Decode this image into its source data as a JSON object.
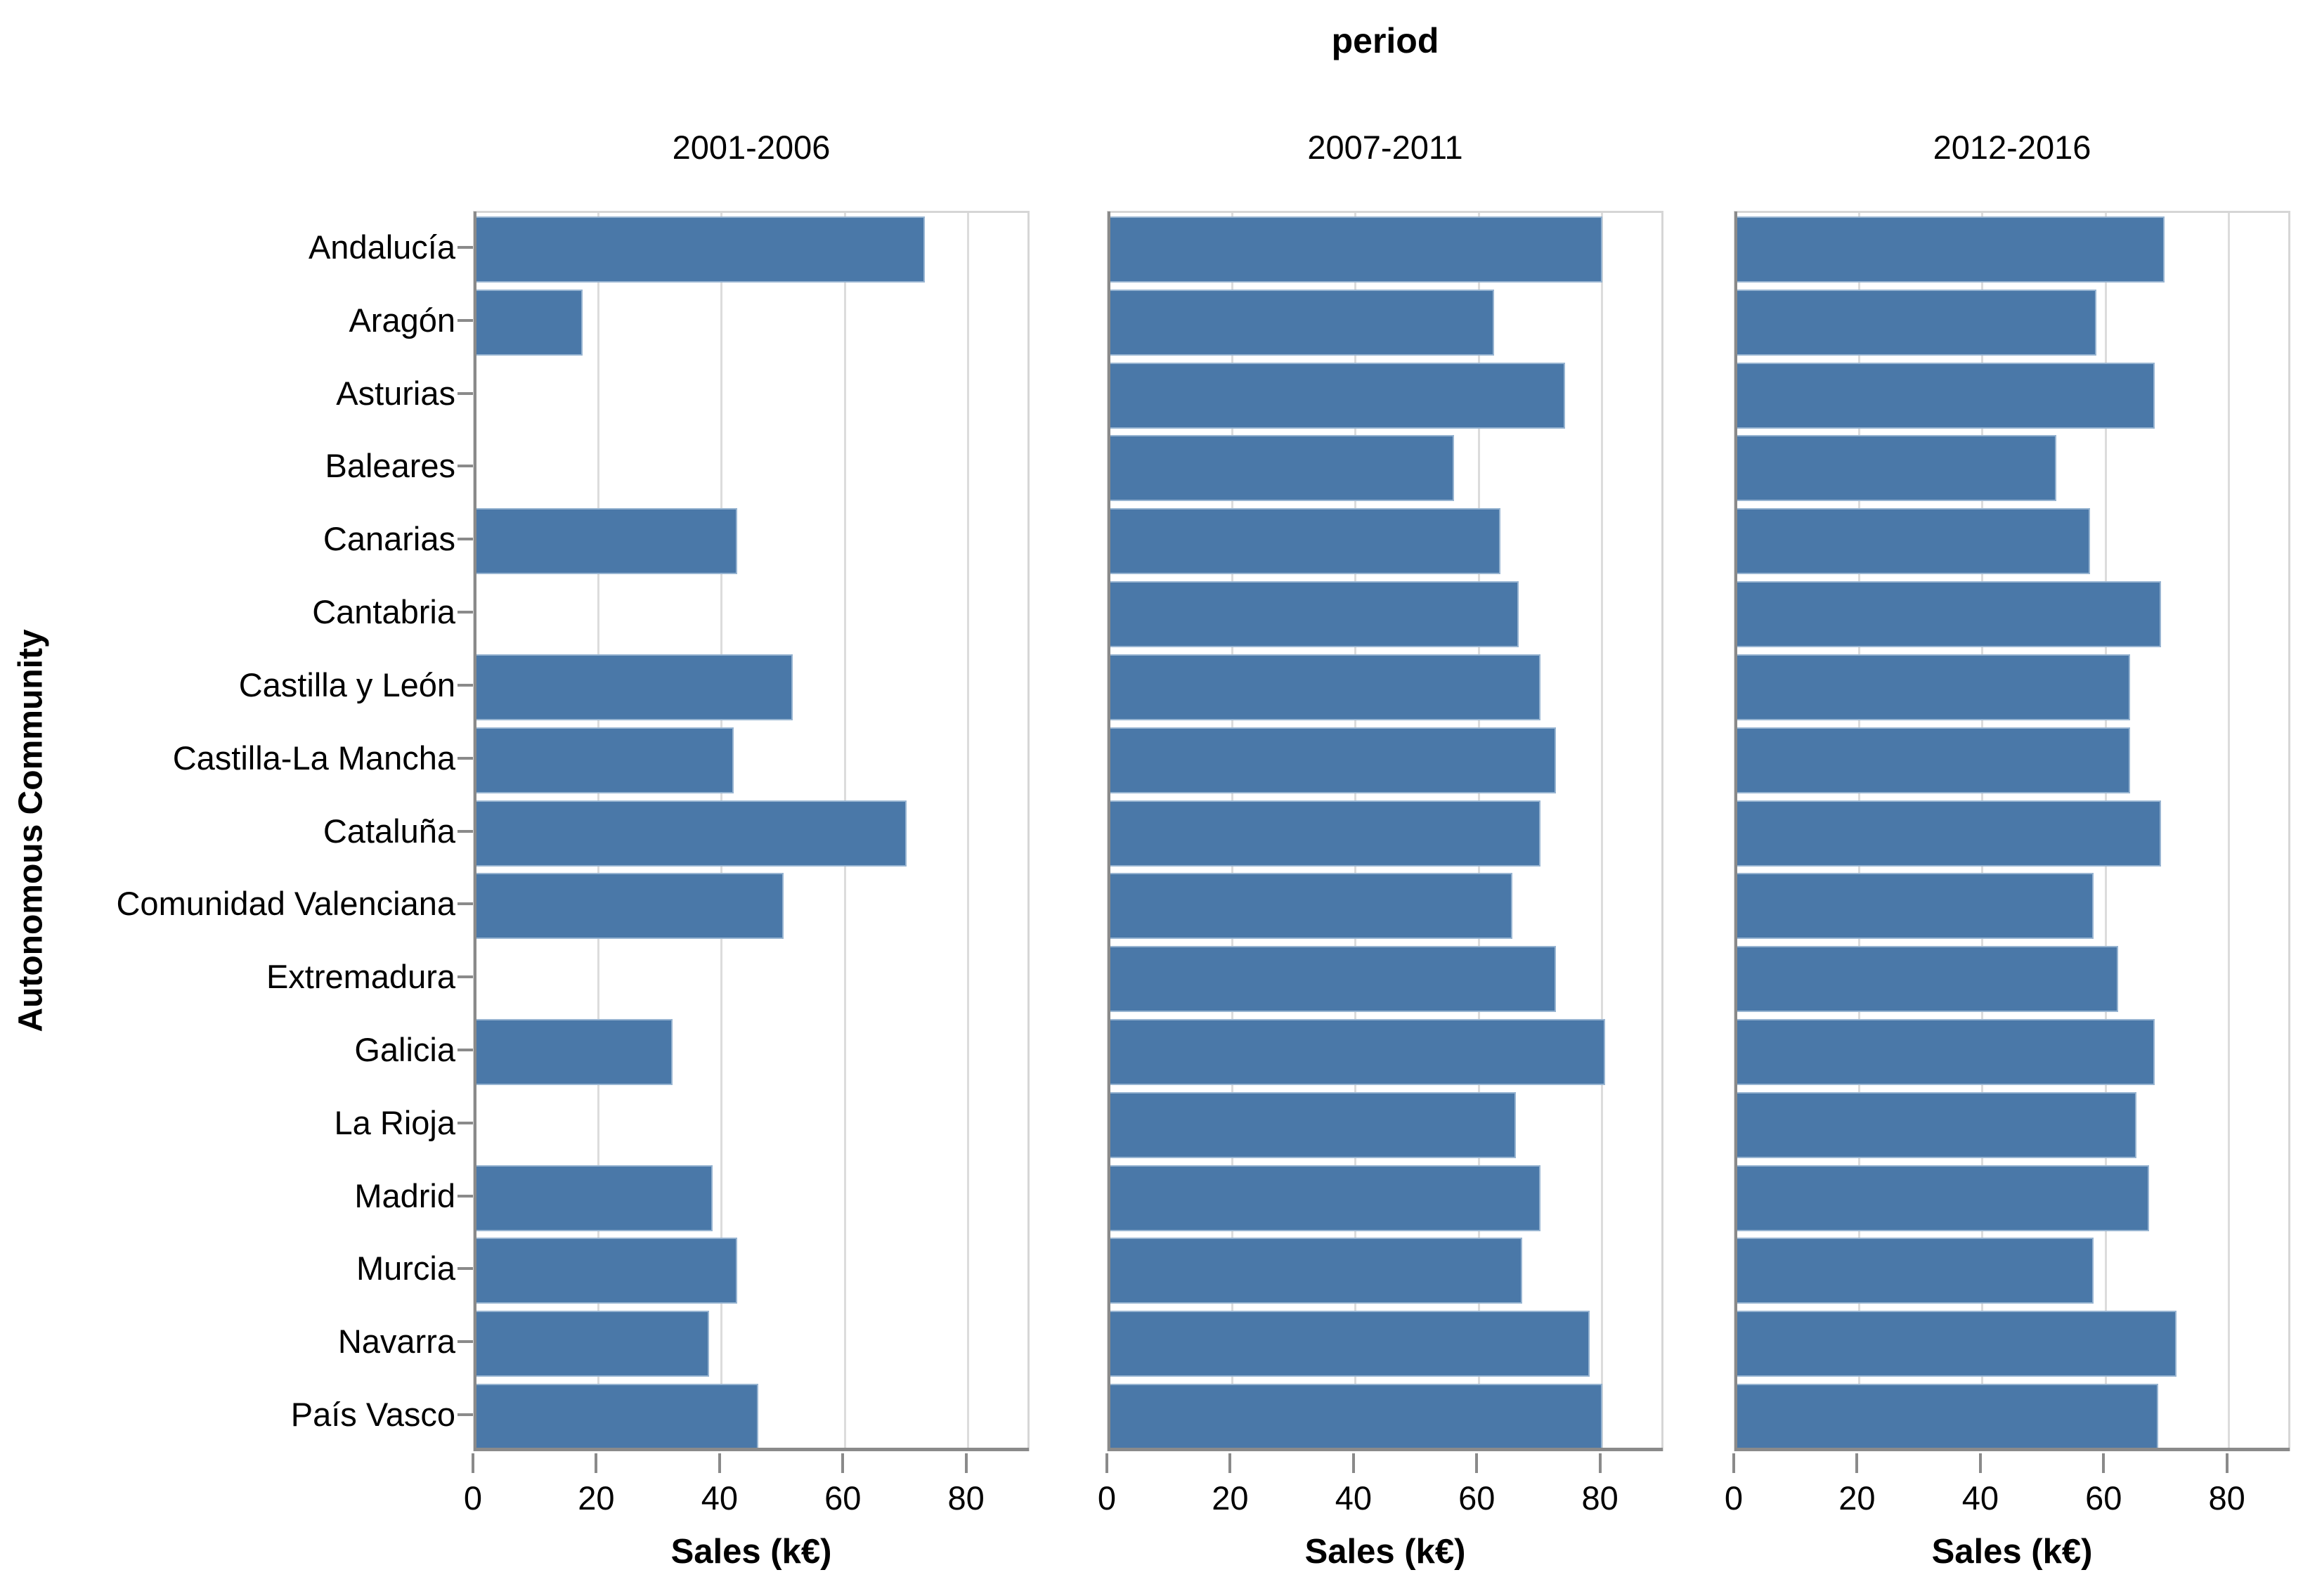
{
  "title": "period",
  "ylabel": "Autonomous Community",
  "xlabel": "Sales (k€)",
  "colors": {
    "bar": "#4a78a8",
    "gridline": "#dcdcdc",
    "spine": "#8a8a8a",
    "panel_border": "#d6d6d6",
    "text": "#000000"
  },
  "chart_data": {
    "type": "bar",
    "orientation": "horizontal",
    "title": "period",
    "xlabel": "Sales (k€)",
    "ylabel": "Autonomous Community",
    "grid": true,
    "xlim": [
      0,
      90.3
    ],
    "xticks": [
      0,
      20,
      40,
      60,
      80
    ],
    "xtick_labels": [
      "0",
      "20",
      "40",
      "60",
      "80"
    ],
    "categories": [
      "Andalucía",
      "Aragón",
      "Asturias",
      "Baleares",
      "Canarias",
      "Cantabria",
      "Castilla y León",
      "Castilla-La Mancha",
      "Cataluña",
      "Comunidad Valenciana",
      "Extremadura",
      "Galicia",
      "La Rioja",
      "Madrid",
      "Murcia",
      "Navarra",
      "País Vasco"
    ],
    "series": [
      {
        "name": "2001-2006",
        "values": [
          73,
          17.5,
          0,
          0,
          42.5,
          0,
          51.5,
          42,
          70,
          50,
          0,
          32,
          0,
          38.5,
          42.5,
          38,
          46
        ]
      },
      {
        "name": "2007-2011",
        "values": [
          80,
          62.5,
          74,
          56,
          63.5,
          66.5,
          70,
          72.5,
          70,
          65.5,
          72.5,
          80.5,
          66,
          70,
          67,
          78,
          80
        ]
      },
      {
        "name": "2012-2016",
        "values": [
          69.5,
          58.5,
          68,
          52,
          57.5,
          69,
          64,
          64,
          69,
          58,
          62,
          68,
          65,
          67,
          58,
          71.5,
          68.5
        ]
      }
    ]
  }
}
